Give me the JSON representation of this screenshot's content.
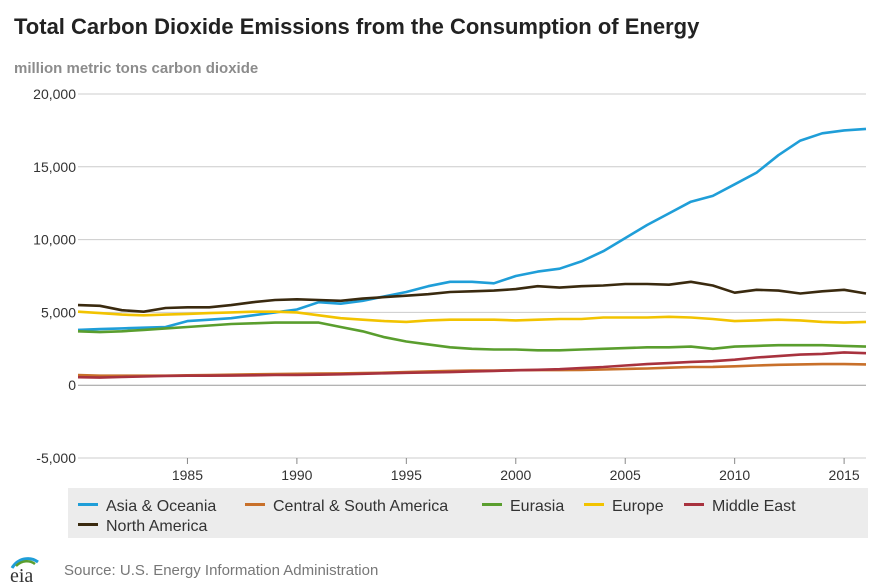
{
  "title": "Total Carbon Dioxide Emissions from the Consumption of Energy",
  "subtitle": "million metric tons carbon dioxide",
  "source": "Source: U.S. Energy Information Administration",
  "logo_text": "eia",
  "chart_data": {
    "type": "line",
    "title": "Total Carbon Dioxide Emissions from the Consumption of Energy",
    "ylabel": "million metric tons carbon dioxide",
    "xlabel": "",
    "xlim": [
      1980,
      2016
    ],
    "ylim": [
      -5000,
      20000
    ],
    "yticks": [
      {
        "value": 20000,
        "label": "20,000"
      },
      {
        "value": 15000,
        "label": "15,000"
      },
      {
        "value": 10000,
        "label": "10,000"
      },
      {
        "value": 5000,
        "label": "5,000"
      },
      {
        "value": 0,
        "label": "0"
      },
      {
        "value": -5000,
        "label": "-5,000"
      }
    ],
    "xticks": [
      {
        "value": 1985,
        "label": "1985"
      },
      {
        "value": 1990,
        "label": "1990"
      },
      {
        "value": 1995,
        "label": "1995"
      },
      {
        "value": 2000,
        "label": "2000"
      },
      {
        "value": 2005,
        "label": "2005"
      },
      {
        "value": 2010,
        "label": "2010"
      },
      {
        "value": 2015,
        "label": "2015"
      }
    ],
    "grid": true,
    "x": [
      1980,
      1981,
      1982,
      1983,
      1984,
      1985,
      1986,
      1987,
      1988,
      1989,
      1990,
      1991,
      1992,
      1993,
      1994,
      1995,
      1996,
      1997,
      1998,
      1999,
      2000,
      2001,
      2002,
      2003,
      2004,
      2005,
      2006,
      2007,
      2008,
      2009,
      2010,
      2011,
      2012,
      2013,
      2014,
      2015,
      2016
    ],
    "series": [
      {
        "name": "Asia & Oceania",
        "color": "#1f9ed8",
        "values": [
          3800,
          3850,
          3900,
          3950,
          4000,
          4400,
          4500,
          4600,
          4800,
          5000,
          5200,
          5700,
          5600,
          5800,
          6100,
          6400,
          6800,
          7100,
          7100,
          7000,
          7500,
          7800,
          8000,
          8500,
          9200,
          10100,
          11000,
          11800,
          12600,
          13000,
          13800,
          14600,
          15800,
          16800,
          17300,
          17500,
          17600
        ]
      },
      {
        "name": "Central & South America",
        "color": "#c8702a",
        "values": [
          700,
          650,
          650,
          650,
          650,
          680,
          700,
          720,
          750,
          760,
          780,
          800,
          810,
          830,
          860,
          900,
          950,
          980,
          1000,
          1010,
          1030,
          1040,
          1040,
          1050,
          1080,
          1120,
          1150,
          1200,
          1250,
          1260,
          1300,
          1350,
          1400,
          1430,
          1450,
          1450,
          1430
        ]
      },
      {
        "name": "Eurasia",
        "color": "#5a9e2e",
        "values": [
          3700,
          3650,
          3700,
          3800,
          3900,
          4000,
          4100,
          4200,
          4250,
          4300,
          4300,
          4300,
          4000,
          3700,
          3300,
          3000,
          2800,
          2600,
          2500,
          2450,
          2450,
          2400,
          2400,
          2450,
          2500,
          2550,
          2600,
          2600,
          2650,
          2500,
          2650,
          2700,
          2750,
          2750,
          2750,
          2700,
          2650
        ]
      },
      {
        "name": "Europe",
        "color": "#f2c300",
        "values": [
          5050,
          4950,
          4850,
          4800,
          4850,
          4900,
          4950,
          5000,
          5050,
          5050,
          5000,
          4800,
          4600,
          4500,
          4400,
          4350,
          4450,
          4500,
          4500,
          4500,
          4450,
          4500,
          4550,
          4550,
          4650,
          4650,
          4650,
          4700,
          4650,
          4550,
          4400,
          4450,
          4500,
          4450,
          4350,
          4300,
          4350
        ]
      },
      {
        "name": "Middle East",
        "color": "#a8323e",
        "values": [
          550,
          520,
          560,
          600,
          640,
          650,
          650,
          660,
          680,
          700,
          700,
          720,
          750,
          780,
          820,
          850,
          870,
          900,
          950,
          980,
          1020,
          1060,
          1100,
          1180,
          1250,
          1350,
          1450,
          1520,
          1600,
          1650,
          1750,
          1900,
          2000,
          2100,
          2150,
          2250,
          2200
        ]
      },
      {
        "name": "North America",
        "color": "#3a2a0f",
        "values": [
          5500,
          5450,
          5150,
          5050,
          5300,
          5350,
          5350,
          5500,
          5700,
          5850,
          5900,
          5850,
          5800,
          5950,
          6050,
          6150,
          6250,
          6400,
          6450,
          6500,
          6600,
          6800,
          6700,
          6800,
          6850,
          6950,
          6950,
          6900,
          7100,
          6850,
          6350,
          6550,
          6500,
          6300,
          6450,
          6550,
          6300
        ]
      }
    ]
  }
}
